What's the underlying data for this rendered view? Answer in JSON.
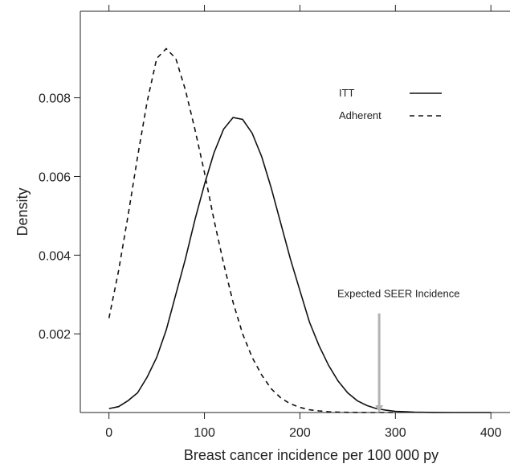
{
  "chart_data": {
    "type": "line",
    "title": "",
    "xlabel": "Breast cancer incidence per 100 000 py",
    "ylabel": "Density",
    "xlim": [
      -30,
      420
    ],
    "ylim": [
      0,
      0.0102
    ],
    "x_ticks": [
      0,
      100,
      200,
      300,
      400
    ],
    "x_tick_labels": [
      "0",
      "100",
      "200",
      "300",
      "400"
    ],
    "y_ticks": [
      0.002,
      0.004,
      0.006,
      0.008
    ],
    "y_tick_labels": [
      "0.002",
      "0.004",
      "0.006",
      "0.008"
    ],
    "grid": false,
    "legend_position": "top-right",
    "series": [
      {
        "name": "ITT",
        "style": "solid",
        "color": "#111111",
        "x": [
          0,
          10,
          20,
          30,
          40,
          50,
          60,
          70,
          80,
          90,
          100,
          110,
          120,
          130,
          140,
          150,
          160,
          170,
          180,
          190,
          200,
          210,
          220,
          230,
          240,
          250,
          260,
          270,
          280,
          290,
          300,
          320,
          340,
          360,
          380,
          400
        ],
        "y": [
          0.0001,
          0.00015,
          0.0003,
          0.0005,
          0.0009,
          0.0014,
          0.0021,
          0.003,
          0.0039,
          0.0049,
          0.0058,
          0.0066,
          0.0072,
          0.0075,
          0.00745,
          0.0071,
          0.0065,
          0.0057,
          0.0048,
          0.0039,
          0.0031,
          0.0023,
          0.0017,
          0.0012,
          0.0008,
          0.0005,
          0.0003,
          0.00018,
          0.0001,
          6e-05,
          3e-05,
          1e-05,
          3e-06,
          1e-06,
          0,
          0
        ]
      },
      {
        "name": "Adherent",
        "style": "dashed",
        "color": "#111111",
        "x": [
          0,
          10,
          20,
          30,
          40,
          50,
          60,
          70,
          80,
          90,
          100,
          110,
          120,
          130,
          140,
          150,
          160,
          170,
          180,
          190,
          200,
          210,
          220,
          230,
          240,
          250,
          260,
          270,
          280,
          290,
          300
        ],
        "y": [
          0.0024,
          0.0036,
          0.005,
          0.0065,
          0.0079,
          0.009,
          0.00925,
          0.009,
          0.0082,
          0.0072,
          0.0061,
          0.0049,
          0.0038,
          0.0028,
          0.002,
          0.0014,
          0.00095,
          0.0006,
          0.00037,
          0.00022,
          0.00013,
          7e-05,
          4e-05,
          2e-05,
          1e-05,
          5e-06,
          2e-06,
          1e-06,
          0,
          0,
          0
        ]
      }
    ],
    "annotations": [
      {
        "text": "Expected SEER Incidence",
        "x": 283,
        "arrow_from_y": 0.00252,
        "arrow_to_y": 0,
        "color": "#b3b3b3"
      }
    ]
  }
}
